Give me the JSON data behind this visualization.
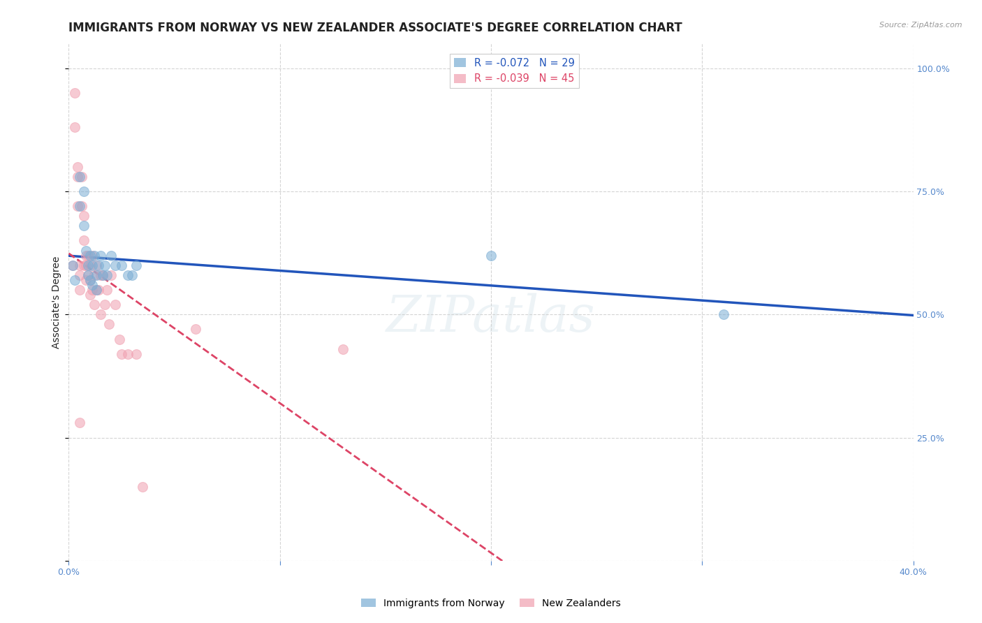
{
  "title": "IMMIGRANTS FROM NORWAY VS NEW ZEALANDER ASSOCIATE'S DEGREE CORRELATION CHART",
  "source": "Source: ZipAtlas.com",
  "ylabel": "Associate's Degree",
  "xlim": [
    0.0,
    0.4
  ],
  "ylim": [
    0.0,
    1.05
  ],
  "watermark": "ZIPatlas",
  "norway_x": [
    0.002,
    0.003,
    0.005,
    0.005,
    0.007,
    0.007,
    0.008,
    0.009,
    0.009,
    0.01,
    0.01,
    0.011,
    0.011,
    0.012,
    0.013,
    0.013,
    0.014,
    0.015,
    0.016,
    0.017,
    0.018,
    0.02,
    0.022,
    0.025,
    0.028,
    0.03,
    0.032,
    0.2,
    0.31
  ],
  "norway_y": [
    0.6,
    0.57,
    0.78,
    0.72,
    0.75,
    0.68,
    0.63,
    0.6,
    0.58,
    0.62,
    0.57,
    0.6,
    0.56,
    0.62,
    0.58,
    0.55,
    0.6,
    0.62,
    0.58,
    0.6,
    0.58,
    0.62,
    0.6,
    0.6,
    0.58,
    0.58,
    0.6,
    0.62,
    0.5
  ],
  "nz_x": [
    0.002,
    0.003,
    0.003,
    0.004,
    0.004,
    0.004,
    0.005,
    0.005,
    0.005,
    0.005,
    0.006,
    0.006,
    0.007,
    0.007,
    0.007,
    0.008,
    0.008,
    0.008,
    0.009,
    0.009,
    0.01,
    0.01,
    0.01,
    0.011,
    0.011,
    0.012,
    0.012,
    0.013,
    0.013,
    0.014,
    0.015,
    0.015,
    0.016,
    0.017,
    0.018,
    0.019,
    0.02,
    0.022,
    0.024,
    0.025,
    0.028,
    0.032,
    0.035,
    0.06,
    0.13
  ],
  "nz_y": [
    0.6,
    0.95,
    0.88,
    0.8,
    0.78,
    0.72,
    0.6,
    0.58,
    0.55,
    0.28,
    0.78,
    0.72,
    0.7,
    0.65,
    0.6,
    0.62,
    0.6,
    0.57,
    0.62,
    0.58,
    0.6,
    0.57,
    0.54,
    0.62,
    0.55,
    0.58,
    0.52,
    0.6,
    0.55,
    0.55,
    0.58,
    0.5,
    0.58,
    0.52,
    0.55,
    0.48,
    0.58,
    0.52,
    0.45,
    0.42,
    0.42,
    0.42,
    0.15,
    0.47,
    0.43
  ],
  "norway_color": "#7aadd4",
  "nz_color": "#f0a0b0",
  "marker_size": 100,
  "marker_alpha": 0.55,
  "trendline_norway_color": "#2255bb",
  "trendline_nz_color": "#dd4466",
  "background_color": "#ffffff",
  "grid_color": "#d0d0d0",
  "axis_color": "#5588cc",
  "title_color": "#222222",
  "title_fontsize": 12,
  "ylabel_fontsize": 10,
  "tick_fontsize": 9
}
